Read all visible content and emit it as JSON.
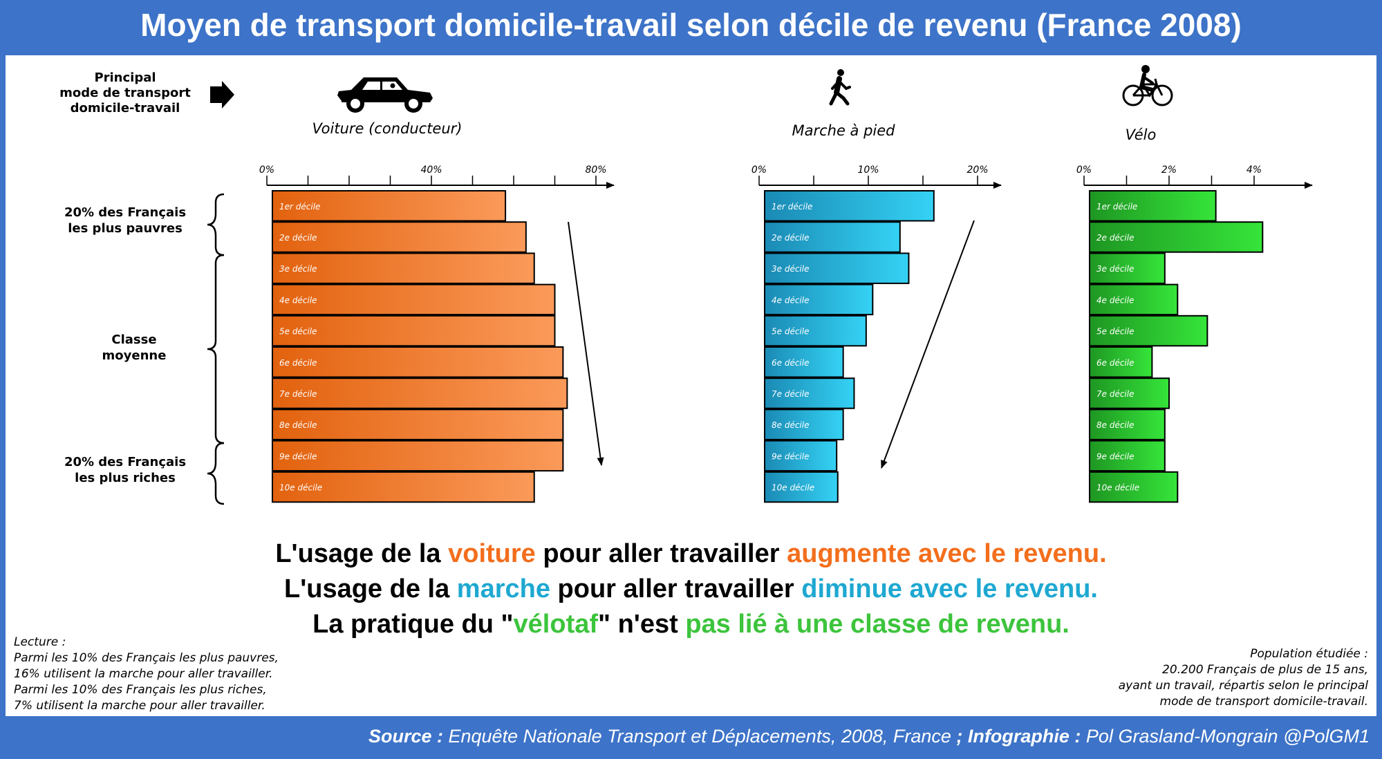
{
  "title": "Moyen de transport domicile-travail selon décile de revenu (France 2008)",
  "header_label": [
    "Principal",
    "mode de transport",
    "domicile-travail"
  ],
  "groups": {
    "poor": [
      "20% des Français",
      "les plus pauvres"
    ],
    "middle": [
      "Classe",
      "moyenne"
    ],
    "rich": [
      "20% des Français",
      "les plus riches"
    ]
  },
  "conclusions": [
    [
      {
        "t": "L'usage de la ",
        "c": "black"
      },
      {
        "t": "voiture",
        "c": "#f36e1c"
      },
      {
        "t": " pour aller travailler ",
        "c": "black"
      },
      {
        "t": "augmente avec le revenu.",
        "c": "#f36e1c"
      }
    ],
    [
      {
        "t": "L'usage de la ",
        "c": "black"
      },
      {
        "t": "marche",
        "c": "#1ea8d1"
      },
      {
        "t": " pour aller travailler ",
        "c": "black"
      },
      {
        "t": "diminue avec le revenu.",
        "c": "#1ea8d1"
      }
    ],
    [
      {
        "t": "La pratique du \"",
        "c": "black"
      },
      {
        "t": "vélotaf",
        "c": "#3cc43c"
      },
      {
        "t": "\" n'est ",
        "c": "black"
      },
      {
        "t": "pas lié à une classe de revenu.",
        "c": "#3cc43c"
      }
    ]
  ],
  "lecture": [
    "Lecture :",
    "Parmi les 10% des Français les plus pauvres,",
    "16% utilisent la marche pour aller travailler.",
    "Parmi les 10% des Français les plus riches,",
    "7% utilisent la marche pour aller travailler."
  ],
  "population": [
    "Population étudiée :",
    "20.200 Français de plus de 15 ans,",
    "ayant un travail, répartis selon le principal",
    "mode de transport domicile-travail."
  ],
  "footer": {
    "source_label": "Source :",
    "source_text": " Enquête Nationale Transport et Déplacements, 2008, France ",
    "sep": "; ",
    "infographie_label": "Infographie :",
    "infographie_text": " Pol Grasland-Mongrain @PolGM1"
  },
  "chart_data": [
    {
      "type": "bar",
      "title": "Voiture (conducteur)",
      "icon": "car-icon",
      "categories": [
        "1er décile",
        "2e décile",
        "3e décile",
        "4e décile",
        "5e décile",
        "6e décile",
        "7e décile",
        "8e décile",
        "9e décile",
        "10e décile"
      ],
      "values": [
        58,
        63,
        65,
        70,
        70,
        72,
        73,
        72,
        72,
        65
      ],
      "tick_labels": [
        "0%",
        "40%",
        "80%"
      ],
      "tick_values": [
        0,
        40,
        80
      ],
      "minor_ticks": [
        0,
        10,
        20,
        30,
        40,
        50,
        60,
        70,
        80
      ],
      "xlim": [
        0,
        84
      ],
      "colors": {
        "dark": "#e2620e",
        "light": "#fb9a5a"
      },
      "trend": "down-right"
    },
    {
      "type": "bar",
      "title": "Marche à pied",
      "icon": "walking-icon",
      "categories": [
        "1er décile",
        "2e décile",
        "3e décile",
        "4e décile",
        "5e décile",
        "6e décile",
        "7e décile",
        "8e décile",
        "9e décile",
        "10e décile"
      ],
      "values": [
        16,
        12.9,
        13.7,
        10.4,
        9.8,
        7.7,
        8.7,
        7.7,
        7.1,
        7.2
      ],
      "tick_labels": [
        "0%",
        "10%",
        "20%"
      ],
      "tick_values": [
        0,
        10,
        20
      ],
      "minor_ticks": [
        0,
        5,
        10,
        15,
        20
      ],
      "xlim": [
        0,
        22
      ],
      "colors": {
        "dark": "#1a8ab4",
        "light": "#35d2f5"
      },
      "trend": "down-left"
    },
    {
      "type": "bar",
      "title": "Vélo",
      "icon": "bicycle-icon",
      "categories": [
        "1er décile",
        "2e décile",
        "3e décile",
        "4e décile",
        "5e décile",
        "6e décile",
        "7e décile",
        "8e décile",
        "9e décile",
        "10e décile"
      ],
      "values": [
        3.1,
        4.2,
        1.9,
        2.2,
        2.9,
        1.6,
        2.0,
        1.9,
        1.9,
        2.2
      ],
      "tick_labels": [
        "0%",
        "2%",
        "4%"
      ],
      "tick_values": [
        0,
        2,
        4
      ],
      "minor_ticks": [
        0,
        1,
        2,
        3,
        4
      ],
      "xlim": [
        0,
        5.4
      ],
      "colors": {
        "dark": "#1e9622",
        "light": "#36e53a"
      },
      "trend": "none"
    }
  ]
}
